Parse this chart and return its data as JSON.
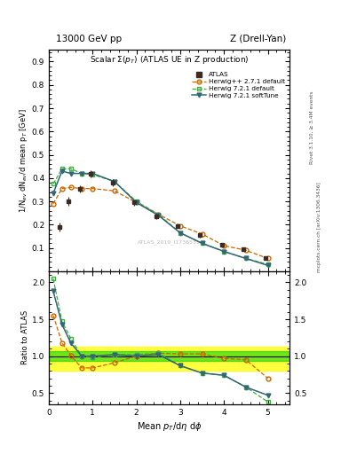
{
  "title_top": "13000 GeV pp",
  "title_right": "Z (Drell-Yan)",
  "plot_title": "Scalar $\\Sigma(p_T)$ (ATLAS UE in Z production)",
  "watermark": "ATLAS_2019_I1736531",
  "rivet_label": "Rivet 3.1.10, ≥ 3.4M events",
  "arxiv_label": "mcplots.cern.ch [arXiv:1306.3436]",
  "xlabel": "Mean $p_T$/d$\\eta$ d$\\phi$",
  "ylabel": "1/N$_{ev}$ dN$_{ev}$/d mean p$_T$ [GeV]",
  "ylabel_ratio": "Ratio to ATLAS",
  "atlas_x": [
    0.25,
    0.45,
    0.7,
    0.95,
    1.45,
    1.95,
    2.45,
    2.95,
    3.45,
    3.95,
    4.45,
    4.95
  ],
  "atlas_y": [
    0.19,
    0.3,
    0.355,
    0.42,
    0.38,
    0.295,
    0.235,
    0.195,
    0.155,
    0.115,
    0.095,
    0.055
  ],
  "atlas_yerr": [
    0.018,
    0.018,
    0.015,
    0.015,
    0.015,
    0.013,
    0.012,
    0.01,
    0.009,
    0.008,
    0.007,
    0.006
  ],
  "hwpp_x": [
    0.1,
    0.3,
    0.5,
    0.75,
    1.0,
    1.5,
    2.0,
    2.5,
    3.0,
    3.5,
    4.0,
    4.5,
    5.0
  ],
  "hwpp_y": [
    0.29,
    0.355,
    0.36,
    0.355,
    0.355,
    0.345,
    0.295,
    0.245,
    0.195,
    0.16,
    0.11,
    0.09,
    0.055
  ],
  "hw721d_x": [
    0.1,
    0.3,
    0.5,
    0.75,
    1.0,
    1.5,
    2.0,
    2.5,
    3.0,
    3.5,
    4.0,
    4.5,
    5.0
  ],
  "hw721d_y": [
    0.375,
    0.44,
    0.44,
    0.42,
    0.415,
    0.385,
    0.3,
    0.245,
    0.165,
    0.12,
    0.085,
    0.055,
    0.03
  ],
  "hw721s_x": [
    0.1,
    0.3,
    0.5,
    0.75,
    1.0,
    1.5,
    2.0,
    2.5,
    3.0,
    3.5,
    4.0,
    4.5,
    5.0
  ],
  "hw721s_y": [
    0.335,
    0.43,
    0.42,
    0.42,
    0.42,
    0.385,
    0.295,
    0.24,
    0.165,
    0.12,
    0.085,
    0.055,
    0.025
  ],
  "ratio_hwpp_x": [
    0.1,
    0.3,
    0.5,
    0.75,
    1.0,
    1.5,
    2.0,
    2.5,
    3.0,
    3.5,
    4.0,
    4.5,
    5.0
  ],
  "ratio_hwpp_y": [
    1.55,
    1.18,
    1.01,
    0.84,
    0.84,
    0.91,
    1.0,
    1.04,
    1.03,
    1.03,
    0.97,
    0.95,
    0.7
  ],
  "ratio_hw721d_x": [
    0.1,
    0.3,
    0.5,
    0.75,
    1.0,
    1.5,
    2.0,
    2.5,
    3.0,
    3.5,
    4.0,
    4.5,
    5.0
  ],
  "ratio_hw721d_y": [
    2.05,
    1.47,
    1.24,
    1.0,
    0.98,
    1.02,
    1.02,
    1.04,
    0.87,
    0.77,
    0.74,
    0.58,
    0.38
  ],
  "ratio_hw721s_x": [
    0.1,
    0.3,
    0.5,
    0.75,
    1.0,
    1.5,
    2.0,
    2.5,
    3.0,
    3.5,
    4.0,
    4.5,
    5.0
  ],
  "ratio_hw721s_y": [
    1.88,
    1.43,
    1.18,
    1.0,
    1.0,
    1.02,
    1.0,
    1.02,
    0.87,
    0.77,
    0.74,
    0.58,
    0.47
  ],
  "color_atlas": "#3d2b1f",
  "color_hwpp": "#cc6600",
  "color_hw721d": "#44aa44",
  "color_hw721s": "#336677",
  "ylim_main": [
    0.0,
    0.95
  ],
  "ylim_ratio": [
    0.35,
    2.15
  ],
  "xlim": [
    0.0,
    5.5
  ],
  "band_green_ymin": 0.93,
  "band_green_ymax": 1.07,
  "band_yellow_ymin": 0.8,
  "band_yellow_ymax": 1.13,
  "yticks_main": [
    0.1,
    0.2,
    0.3,
    0.4,
    0.5,
    0.6,
    0.7,
    0.8,
    0.9
  ],
  "yticks_ratio": [
    0.5,
    1.0,
    1.5,
    2.0
  ],
  "xticks": [
    0,
    1,
    2,
    3,
    4,
    5
  ]
}
